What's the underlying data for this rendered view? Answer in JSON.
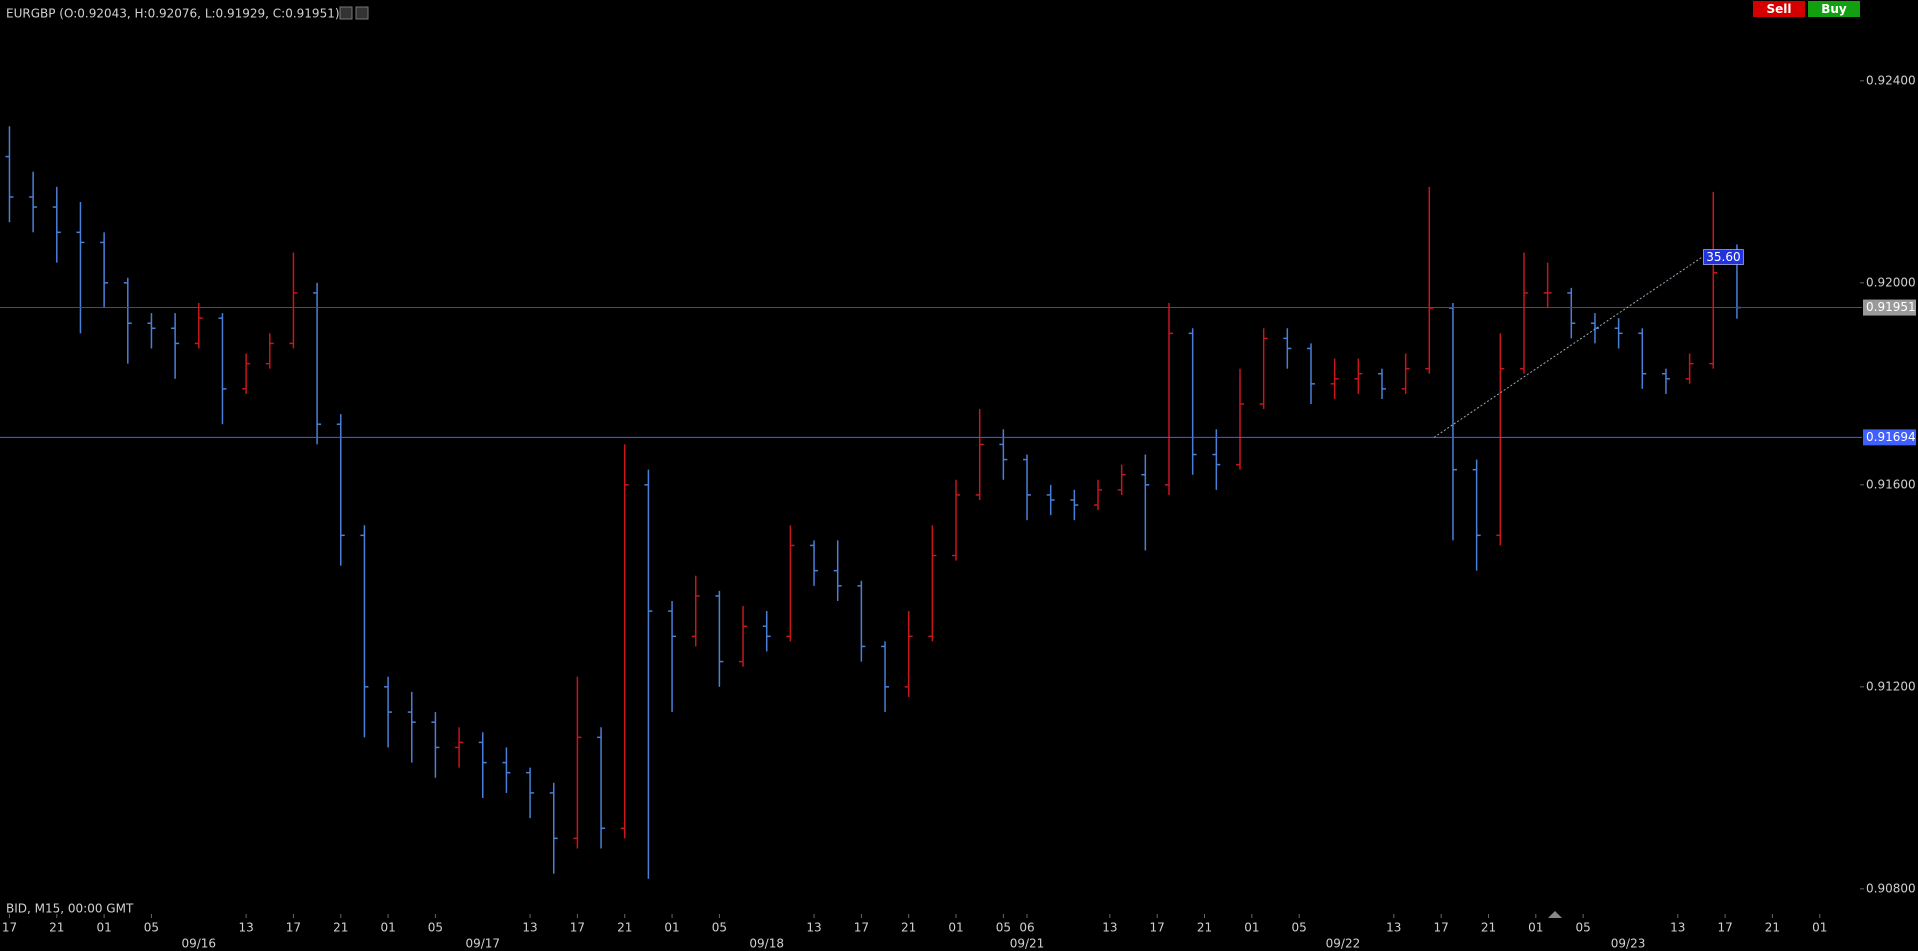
{
  "toolbar": {
    "sell": "Sell",
    "buy": "Buy"
  },
  "chart_data": {
    "type": "ohlc",
    "title": "EURGBP (O:0.92043, H:0.92076, L:0.91929, C:0.91951)",
    "footer_label": "BID, M15, 00:00 GMT",
    "up_color": "#c8161d",
    "down_color": "#4a7fd8",
    "xlim": [
      -0.8,
      156.4
    ],
    "ylim": [
      0.9077,
      0.9256
    ],
    "yticks": [
      {
        "value": 0.908,
        "label": "0.90800"
      },
      {
        "value": 0.912,
        "label": "0.91200"
      },
      {
        "value": 0.916,
        "label": "0.91600"
      },
      {
        "value": 0.92,
        "label": "0.92000"
      },
      {
        "value": 0.924,
        "label": "0.92400"
      }
    ],
    "xticks": [
      {
        "value": 0,
        "label": "17"
      },
      {
        "value": 4,
        "label": "21"
      },
      {
        "value": 8,
        "label": "01"
      },
      {
        "value": 12,
        "label": "05"
      },
      {
        "value": 20,
        "label": "13"
      },
      {
        "value": 24,
        "label": "17"
      },
      {
        "value": 28,
        "label": "21"
      },
      {
        "value": 32,
        "label": "01"
      },
      {
        "value": 36,
        "label": "05"
      },
      {
        "value": 44,
        "label": "13"
      },
      {
        "value": 48,
        "label": "17"
      },
      {
        "value": 52,
        "label": "21"
      },
      {
        "value": 56,
        "label": "01"
      },
      {
        "value": 60,
        "label": "05"
      },
      {
        "value": 68,
        "label": "13"
      },
      {
        "value": 72,
        "label": "17"
      },
      {
        "value": 76,
        "label": "21"
      },
      {
        "value": 80,
        "label": "01"
      },
      {
        "value": 84,
        "label": "05"
      },
      {
        "value": 86,
        "label": "06"
      },
      {
        "value": 93,
        "label": "13"
      },
      {
        "value": 97,
        "label": "17"
      },
      {
        "value": 101,
        "label": "21"
      },
      {
        "value": 105,
        "label": "01"
      },
      {
        "value": 109,
        "label": "05"
      },
      {
        "value": 117,
        "label": "13"
      },
      {
        "value": 121,
        "label": "17"
      },
      {
        "value": 125,
        "label": "21"
      },
      {
        "value": 129,
        "label": "01"
      },
      {
        "value": 133,
        "label": "05"
      },
      {
        "value": 141,
        "label": "13"
      },
      {
        "value": 145,
        "label": "17"
      },
      {
        "value": 149,
        "label": "21"
      },
      {
        "value": 153,
        "label": "01"
      }
    ],
    "date_labels": [
      {
        "value": 16,
        "label": "09/16"
      },
      {
        "value": 40,
        "label": "09/17"
      },
      {
        "value": 64,
        "label": "09/18"
      },
      {
        "value": 86,
        "label": "09/21"
      },
      {
        "value": 112.7,
        "label": "09/22"
      },
      {
        "value": 136.8,
        "label": "09/23"
      }
    ],
    "x": [
      0,
      2,
      4,
      6,
      8,
      10,
      12,
      14,
      16,
      18,
      20,
      22,
      24,
      26,
      28,
      30,
      32,
      34,
      36,
      38,
      40,
      42,
      44,
      46,
      48,
      50,
      52,
      54,
      56,
      58,
      60,
      62,
      64,
      66,
      68,
      70,
      72,
      74,
      76,
      78,
      80,
      82,
      84,
      86,
      88,
      90,
      92,
      94,
      96,
      98,
      100,
      102,
      104,
      106,
      108,
      110,
      112,
      114,
      116,
      118,
      120,
      122,
      124,
      126,
      128,
      130,
      132,
      134,
      136,
      138,
      140,
      142,
      144,
      146
    ],
    "open": [
      0.9225,
      0.9217,
      0.9215,
      0.921,
      0.9208,
      0.92,
      0.9192,
      0.9191,
      0.9188,
      0.9193,
      0.9179,
      0.9184,
      0.9188,
      0.9198,
      0.9172,
      0.915,
      0.912,
      0.9115,
      0.9113,
      0.9108,
      0.9109,
      0.9105,
      0.9103,
      0.9099,
      0.909,
      0.911,
      0.9092,
      0.916,
      0.9135,
      0.913,
      0.9138,
      0.9125,
      0.9132,
      0.913,
      0.9148,
      0.9143,
      0.914,
      0.9128,
      0.912,
      0.913,
      0.9146,
      0.9158,
      0.9168,
      0.9165,
      0.9158,
      0.9157,
      0.9156,
      0.9159,
      0.9162,
      0.916,
      0.919,
      0.9166,
      0.9164,
      0.9176,
      0.9189,
      0.9187,
      0.918,
      0.9181,
      0.9182,
      0.9179,
      0.9183,
      0.9195,
      0.9163,
      0.915,
      0.9183,
      0.9198,
      0.9198,
      0.9192,
      0.9191,
      0.919,
      0.9182,
      0.9181,
      0.9184,
      0.92043
    ],
    "high": [
      0.9231,
      0.9222,
      0.9219,
      0.9216,
      0.921,
      0.9201,
      0.9194,
      0.9194,
      0.9196,
      0.9194,
      0.9186,
      0.919,
      0.9206,
      0.92,
      0.9174,
      0.9152,
      0.9122,
      0.9119,
      0.9115,
      0.9112,
      0.9111,
      0.9108,
      0.9104,
      0.9101,
      0.9122,
      0.9112,
      0.9168,
      0.9163,
      0.9137,
      0.9142,
      0.9139,
      0.9136,
      0.9135,
      0.9152,
      0.9149,
      0.9149,
      0.9141,
      0.9129,
      0.9135,
      0.9152,
      0.9161,
      0.9175,
      0.9171,
      0.9166,
      0.916,
      0.9159,
      0.9161,
      0.9164,
      0.9166,
      0.9196,
      0.9191,
      0.9171,
      0.9183,
      0.9191,
      0.9191,
      0.9188,
      0.9185,
      0.9185,
      0.9183,
      0.9186,
      0.9219,
      0.9196,
      0.9165,
      0.919,
      0.9206,
      0.9204,
      0.9199,
      0.9194,
      0.9193,
      0.9191,
      0.9183,
      0.9186,
      0.9218,
      0.92076
    ],
    "low": [
      0.9212,
      0.921,
      0.9204,
      0.919,
      0.9195,
      0.9184,
      0.9187,
      0.9181,
      0.9187,
      0.9172,
      0.9178,
      0.9183,
      0.9187,
      0.9168,
      0.9144,
      0.911,
      0.9108,
      0.9105,
      0.9102,
      0.9104,
      0.9098,
      0.9099,
      0.9094,
      0.9083,
      0.9088,
      0.9088,
      0.909,
      0.9082,
      0.9115,
      0.9128,
      0.912,
      0.9124,
      0.9127,
      0.9129,
      0.914,
      0.9137,
      0.9125,
      0.9115,
      0.9118,
      0.9129,
      0.9145,
      0.9157,
      0.9161,
      0.9153,
      0.9154,
      0.9153,
      0.9155,
      0.9158,
      0.9147,
      0.9158,
      0.9162,
      0.9159,
      0.9163,
      0.9175,
      0.9183,
      0.9176,
      0.9177,
      0.9178,
      0.9177,
      0.9178,
      0.9182,
      0.9149,
      0.9143,
      0.9148,
      0.9182,
      0.9195,
      0.9189,
      0.9188,
      0.9187,
      0.9179,
      0.9178,
      0.918,
      0.9183,
      0.91929
    ],
    "close": [
      0.9217,
      0.9215,
      0.921,
      0.9208,
      0.92,
      0.9192,
      0.9191,
      0.9188,
      0.9193,
      0.9179,
      0.9184,
      0.9188,
      0.9198,
      0.9172,
      0.915,
      0.912,
      0.9115,
      0.9113,
      0.9108,
      0.9109,
      0.9105,
      0.9103,
      0.9099,
      0.909,
      0.911,
      0.9092,
      0.916,
      0.9135,
      0.913,
      0.9138,
      0.9125,
      0.9132,
      0.913,
      0.9148,
      0.9143,
      0.914,
      0.9128,
      0.912,
      0.913,
      0.9146,
      0.9158,
      0.9168,
      0.9165,
      0.9158,
      0.9157,
      0.9156,
      0.9159,
      0.9162,
      0.916,
      0.919,
      0.9166,
      0.9164,
      0.9176,
      0.9189,
      0.9187,
      0.918,
      0.9181,
      0.9182,
      0.9179,
      0.9183,
      0.9195,
      0.9163,
      0.915,
      0.9183,
      0.9198,
      0.9198,
      0.9192,
      0.9191,
      0.919,
      0.9182,
      0.9181,
      0.9184,
      0.9202,
      0.91951
    ],
    "price_lines": [
      {
        "value": 0.91951,
        "label": "0.91951",
        "color": "#d0161d",
        "label_color": "#9a9a9a"
      },
      {
        "value": 0.91694,
        "label": "0.91694",
        "color": "#3f5fff",
        "label_color": "#3f5fff"
      }
    ],
    "measure": {
      "x": [
        120.4,
        143
      ],
      "y": [
        0.91694,
        0.9205
      ],
      "label": "35.60"
    }
  }
}
